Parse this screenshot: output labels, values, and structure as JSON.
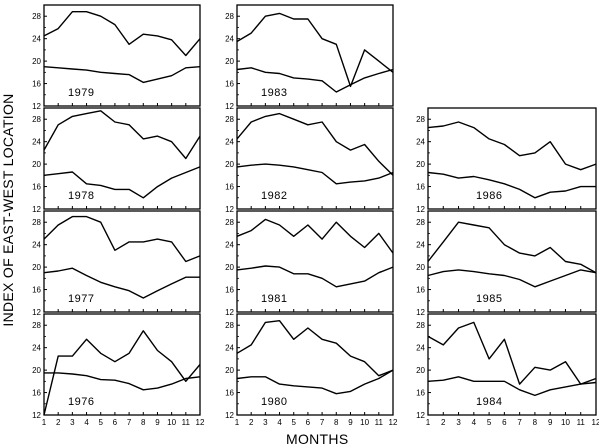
{
  "figure": {
    "ylabel": "INDEX OF EAST-WEST LOCATION",
    "xlabel": "MONTHS"
  },
  "chart_data": {
    "type": "line",
    "x": [
      1,
      2,
      3,
      4,
      5,
      6,
      7,
      8,
      9,
      10,
      11,
      12
    ],
    "xticks": [
      "1",
      "2",
      "3",
      "4",
      "5",
      "6",
      "7",
      "8",
      "9",
      "10",
      "11",
      "12"
    ],
    "ylim": [
      12,
      30
    ],
    "yticks": [
      "12",
      "16",
      "20",
      "24",
      "28"
    ],
    "panels": [
      {
        "year": "1979",
        "series": [
          {
            "values": [
              24.5,
              25.8,
              28.8,
              28.8,
              28.0,
              26.5,
              23.0,
              24.8,
              24.5,
              23.8,
              21.0,
              24.0
            ]
          },
          {
            "values": [
              19.0,
              18.8,
              18.6,
              18.4,
              18.0,
              17.8,
              17.6,
              16.2,
              16.8,
              17.4,
              18.8,
              19.0
            ]
          }
        ]
      },
      {
        "year": "1978",
        "series": [
          {
            "values": [
              22.5,
              27.0,
              28.5,
              29.0,
              29.5,
              27.5,
              27.0,
              24.5,
              25.0,
              24.0,
              21.0,
              25.0
            ]
          },
          {
            "values": [
              18.0,
              18.3,
              18.6,
              16.5,
              16.2,
              15.5,
              15.5,
              14.0,
              16.0,
              17.5,
              18.5,
              19.5
            ]
          }
        ]
      },
      {
        "year": "1977",
        "series": [
          {
            "values": [
              25.0,
              27.5,
              29.0,
              29.0,
              28.0,
              23.0,
              24.5,
              24.5,
              25.0,
              24.5,
              21.0,
              22.0
            ]
          },
          {
            "values": [
              19.0,
              19.3,
              19.8,
              18.5,
              17.3,
              16.5,
              15.8,
              14.5,
              15.8,
              17.0,
              18.2,
              18.2
            ]
          }
        ]
      },
      {
        "year": "1976",
        "series": [
          {
            "values": [
              12.0,
              22.5,
              22.5,
              25.5,
              23.0,
              21.5,
              23.0,
              27.0,
              23.5,
              21.5,
              18.0,
              21.0
            ]
          },
          {
            "values": [
              19.5,
              19.5,
              19.3,
              19.0,
              18.3,
              18.2,
              17.6,
              16.5,
              16.8,
              17.5,
              18.5,
              18.8
            ]
          }
        ]
      },
      {
        "year": "1983",
        "series": [
          {
            "values": [
              23.5,
              25.0,
              28.0,
              28.5,
              27.5,
              27.5,
              24.0,
              23.0,
              15.5,
              22.0,
              20.0,
              18.0
            ]
          },
          {
            "values": [
              18.5,
              18.8,
              18.0,
              17.8,
              17.0,
              16.8,
              16.5,
              14.5,
              15.8,
              17.0,
              17.8,
              18.5
            ]
          }
        ]
      },
      {
        "year": "1982",
        "series": [
          {
            "values": [
              24.5,
              27.5,
              28.5,
              29.0,
              28.0,
              27.0,
              27.5,
              24.0,
              22.5,
              23.5,
              20.5,
              18.0
            ]
          },
          {
            "values": [
              19.5,
              19.8,
              20.0,
              19.8,
              19.5,
              19.0,
              18.5,
              16.5,
              16.8,
              17.0,
              17.5,
              18.5
            ]
          }
        ]
      },
      {
        "year": "1981",
        "series": [
          {
            "values": [
              25.5,
              26.5,
              28.5,
              27.5,
              25.5,
              27.5,
              25.0,
              28.0,
              25.5,
              23.5,
              26.0,
              22.5
            ]
          },
          {
            "values": [
              19.5,
              19.8,
              20.2,
              20.0,
              18.8,
              18.8,
              18.0,
              16.5,
              17.0,
              17.5,
              19.0,
              20.0
            ]
          }
        ]
      },
      {
        "year": "1980",
        "series": [
          {
            "values": [
              23.0,
              24.5,
              28.5,
              28.8,
              25.5,
              27.5,
              25.5,
              24.8,
              22.5,
              21.5,
              19.0,
              20.0
            ]
          },
          {
            "values": [
              18.5,
              18.8,
              18.8,
              17.5,
              17.2,
              17.0,
              16.8,
              15.8,
              16.2,
              17.5,
              18.5,
              20.0
            ]
          }
        ]
      },
      {
        "year": "1986",
        "series": [
          {
            "values": [
              26.5,
              26.8,
              27.5,
              26.5,
              24.5,
              23.5,
              21.5,
              22.0,
              24.0,
              20.0,
              19.0,
              20.0
            ]
          },
          {
            "values": [
              18.5,
              18.2,
              17.5,
              17.8,
              17.2,
              16.5,
              15.5,
              14.0,
              15.0,
              15.2,
              16.0,
              16.0
            ]
          }
        ]
      },
      {
        "year": "1985",
        "series": [
          {
            "values": [
              21.0,
              24.5,
              28.0,
              27.5,
              27.0,
              24.0,
              22.5,
              22.0,
              23.5,
              21.0,
              20.5,
              19.0
            ]
          },
          {
            "values": [
              18.5,
              19.2,
              19.5,
              19.2,
              18.8,
              18.5,
              17.8,
              16.5,
              17.5,
              18.5,
              19.5,
              19.0
            ]
          }
        ]
      },
      {
        "year": "1984",
        "series": [
          {
            "values": [
              26.0,
              24.5,
              27.5,
              28.5,
              22.0,
              25.5,
              17.5,
              20.5,
              20.0,
              21.5,
              17.5,
              18.5
            ]
          },
          {
            "values": [
              18.0,
              18.2,
              18.8,
              18.0,
              18.0,
              18.0,
              16.5,
              15.5,
              16.5,
              17.0,
              17.5,
              17.8
            ]
          }
        ]
      }
    ]
  }
}
